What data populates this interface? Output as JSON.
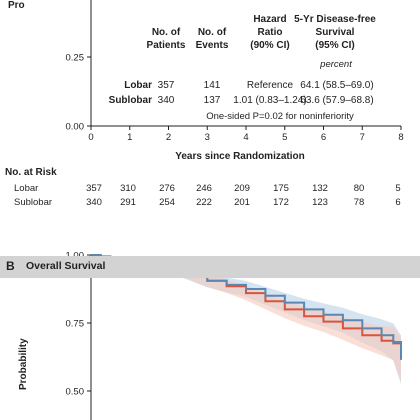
{
  "panel_b": {
    "letter": "B",
    "title": "Overall Survival"
  },
  "colors": {
    "lobar": "#5b87b0",
    "sublobar": "#d9543a",
    "lobar_band": "#c6dbec",
    "sublobar_band": "#f6c9bc",
    "panel_bar": "#d3d3d3"
  },
  "risk_table": {
    "title": "No. at Risk",
    "rows": [
      {
        "group": "Lobar",
        "values": [
          "357",
          "310",
          "276",
          "246",
          "209",
          "175",
          "132",
          "80",
          "5"
        ]
      },
      {
        "group": "Sublobar",
        "values": [
          "340",
          "291",
          "254",
          "222",
          "201",
          "172",
          "123",
          "78",
          "6"
        ]
      }
    ]
  },
  "chart_data": [
    {
      "panel": "A",
      "type": "line",
      "ylabel": "Pro",
      "xlabel": "Years since Randomization",
      "x_ticks": [
        "0",
        "1",
        "2",
        "3",
        "4",
        "5",
        "6",
        "7",
        "8"
      ],
      "y_ticks": [
        "0.00",
        "0.25"
      ],
      "xlim": [
        0,
        8
      ],
      "stats_table": {
        "headers": [
          "No. of Patients",
          "No. of Events",
          "Hazard Ratio (90% CI)",
          "5-Yr Disease-free Survival (95% CI)"
        ],
        "unit_note": "percent",
        "rows": [
          {
            "group": "Lobar",
            "patients": "357",
            "events": "141",
            "hazard_ratio": "Reference",
            "survival": "64.1 (58.5–69.0)"
          },
          {
            "group": "Sublobar",
            "patients": "340",
            "events": "137",
            "hazard_ratio": "1.01 (0.83–1.24)",
            "survival": "63.6 (57.9–68.8)"
          }
        ],
        "note": "One-sided P=0.02 for noninferiority"
      }
    },
    {
      "panel": "B",
      "type": "line",
      "title": "Overall Survival",
      "ylabel": "Probability",
      "xlim": [
        0,
        8
      ],
      "ylim": [
        0.46,
        1.0
      ],
      "y_ticks": [
        "1.00",
        "0.75",
        "0.50"
      ],
      "series": [
        {
          "name": "Lobar",
          "x": [
            0,
            0.25,
            0.5,
            0.75,
            1.0,
            1.5,
            2.0,
            2.5,
            3.0,
            3.5,
            4.0,
            4.5,
            5.0,
            5.5,
            6.0,
            6.5,
            7.0,
            7.5,
            7.8,
            8.0
          ],
          "y": [
            1.0,
            0.995,
            0.99,
            0.985,
            0.978,
            0.965,
            0.952,
            0.93,
            0.905,
            0.89,
            0.875,
            0.85,
            0.825,
            0.8,
            0.78,
            0.76,
            0.73,
            0.705,
            0.68,
            0.615
          ]
        },
        {
          "name": "Sublobar",
          "x": [
            0,
            0.25,
            0.5,
            0.75,
            1.0,
            1.5,
            2.0,
            2.5,
            3.0,
            3.5,
            4.0,
            4.5,
            5.0,
            5.5,
            6.0,
            6.5,
            7.0,
            7.5,
            7.8,
            8.0
          ],
          "y": [
            1.0,
            0.99,
            0.985,
            0.978,
            0.972,
            0.96,
            0.948,
            0.93,
            0.905,
            0.885,
            0.86,
            0.83,
            0.8,
            0.775,
            0.755,
            0.73,
            0.705,
            0.685,
            0.675,
            0.615
          ]
        }
      ]
    }
  ]
}
